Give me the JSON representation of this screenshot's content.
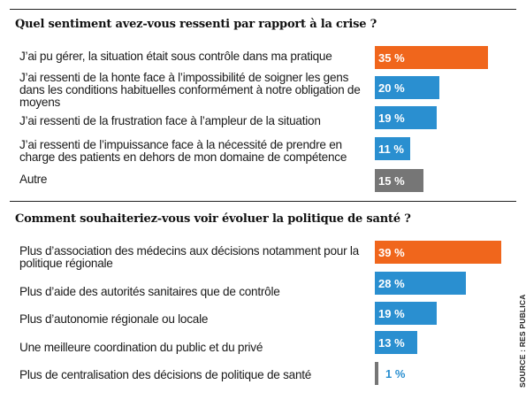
{
  "colors": {
    "highlight": "#f0661c",
    "primary": "#2a8fd0",
    "other": "#767676"
  },
  "source": "SOURCE : RES PUBLICA",
  "chart_data": [
    {
      "type": "bar",
      "orientation": "horizontal",
      "title": "Quel sentiment avez-vous ressenti par rapport à la crise ?",
      "categories": [
        "J’ai pu gérer, la situation était sous contrôle dans ma pratique",
        "J’ai ressenti de la honte face à l’impossibilité de soigner les gens dans les conditions habituelles conformément à notre obligation de moyens",
        "J’ai ressenti de la frustration face à l’ampleur de la situation",
        "J’ai ressenti de l’impuissance face à la nécessité de prendre en charge des patients en dehors de mon domaine de compétence",
        "Autre"
      ],
      "values": [
        35,
        20,
        19,
        11,
        15
      ],
      "value_labels": [
        "35 %",
        "20 %",
        "19 %",
        "11 %",
        "15 %"
      ],
      "bar_colors": [
        "highlight",
        "primary",
        "primary",
        "primary",
        "other"
      ],
      "xlim": [
        0,
        39
      ]
    },
    {
      "type": "bar",
      "orientation": "horizontal",
      "title": "Comment souhaiteriez-vous voir évoluer la politique de santé ?",
      "categories": [
        "Plus d’association des médecins aux décisions notamment pour la politique régionale",
        "Plus d’aide des autorités sanitaires que de contrôle",
        "Plus d’autonomie régionale ou locale",
        "Une meilleure coordination du public et du privé",
        "Plus de centralisation des décisions de politique de santé"
      ],
      "values": [
        39,
        28,
        19,
        13,
        1
      ],
      "value_labels": [
        "39 %",
        "28 %",
        "19 %",
        "13 %",
        "1 %"
      ],
      "bar_colors": [
        "highlight",
        "primary",
        "primary",
        "primary",
        "other"
      ],
      "xlim": [
        0,
        39
      ]
    }
  ]
}
